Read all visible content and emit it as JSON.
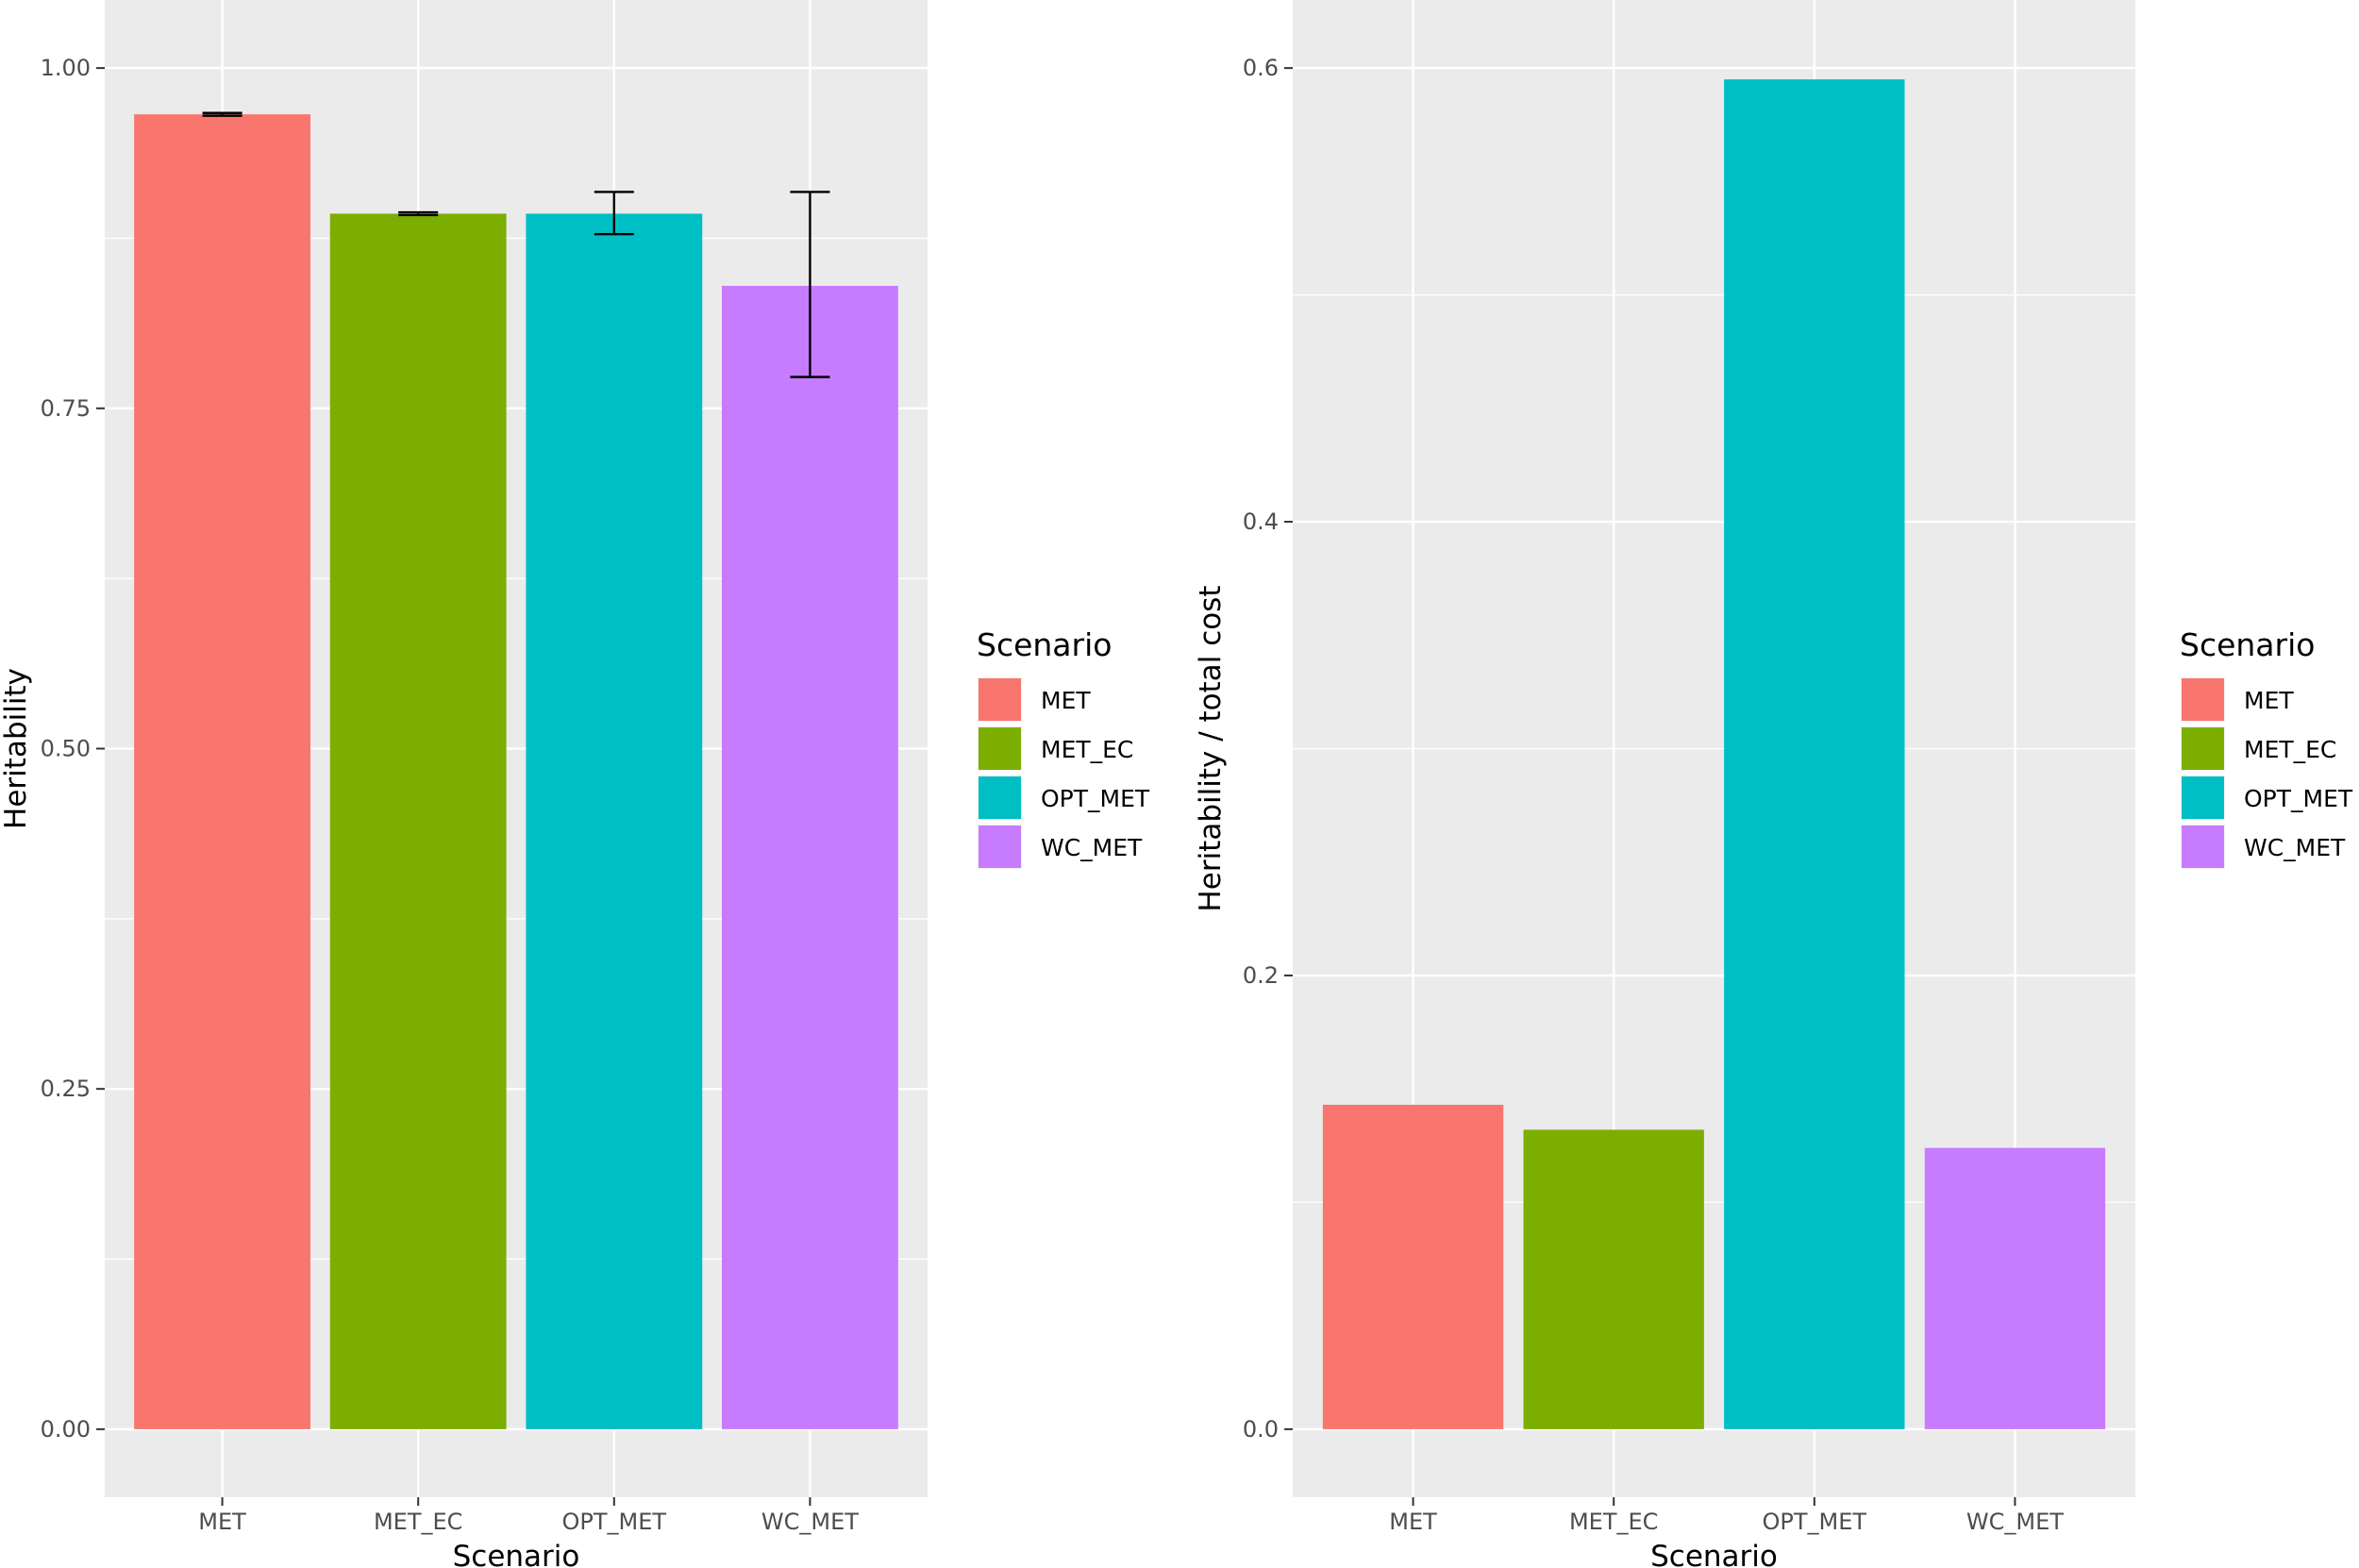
{
  "chart_data": [
    {
      "type": "bar",
      "categories": [
        "MET",
        "MET_EC",
        "OPT_MET",
        "WC_MET"
      ],
      "values": [
        0.966,
        0.893,
        0.893,
        0.84
      ],
      "error_bars": [
        [
          0.965,
          0.967
        ],
        [
          0.892,
          0.894
        ],
        [
          0.878,
          0.909
        ],
        [
          0.773,
          0.909
        ]
      ],
      "colors": [
        "#F8766D",
        "#7CAE00",
        "#00BFC4",
        "#C77CFF"
      ],
      "xlabel": "Scenario",
      "ylabel": "Heritability",
      "ylim": [
        -0.05,
        1.05
      ],
      "yticks": [
        0,
        0.25,
        0.5,
        0.75,
        1
      ],
      "ytick_labels": [
        "0.00",
        "0.25",
        "0.50",
        "0.75",
        "1.00"
      ],
      "grid": true,
      "legend": {
        "title": "Scenario",
        "placement": "right",
        "entries": [
          "MET",
          "MET_EC",
          "OPT_MET",
          "WC_MET"
        ]
      }
    },
    {
      "type": "bar",
      "categories": [
        "MET",
        "MET_EC",
        "OPT_MET",
        "WC_MET"
      ],
      "values": [
        0.143,
        0.132,
        0.595,
        0.124
      ],
      "colors": [
        "#F8766D",
        "#7CAE00",
        "#00BFC4",
        "#C77CFF"
      ],
      "xlabel": "Scenario",
      "ylabel": "Heritability / total cost",
      "ylim": [
        -0.03,
        0.63
      ],
      "yticks": [
        0,
        0.2,
        0.4,
        0.6
      ],
      "ytick_labels": [
        "0.0",
        "0.2",
        "0.4",
        "0.6"
      ],
      "grid": true,
      "legend": {
        "title": "Scenario",
        "placement": "right",
        "entries": [
          "MET",
          "MET_EC",
          "OPT_MET",
          "WC_MET"
        ]
      }
    }
  ]
}
